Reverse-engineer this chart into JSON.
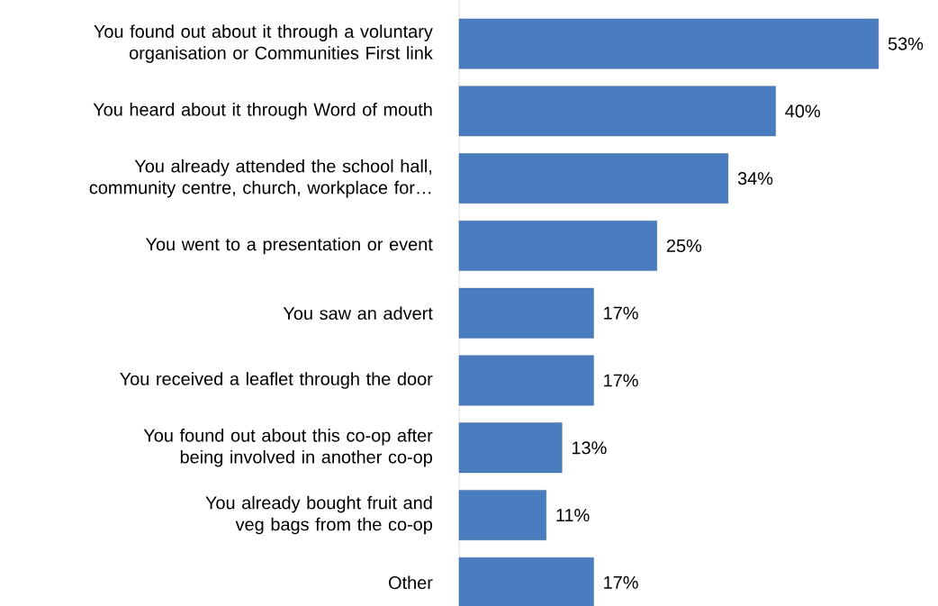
{
  "chart_data": {
    "type": "bar",
    "orientation": "horizontal",
    "color": "#4a7dc0",
    "categories": [
      "You found out about it through a voluntary organisation or Communities First link",
      "You heard about it through Word of mouth",
      "You already attended the school hall, community centre, church, workplace for…",
      "You went to a presentation or event",
      "You saw an advert",
      "You received a leaflet through the door",
      "You found out about this co-op after being involved in another co-op",
      "You already bought fruit and veg bags from the co-op",
      "Other"
    ],
    "values": [
      53,
      40,
      34,
      25,
      17,
      17,
      13,
      11,
      17
    ],
    "value_labels": [
      "53%",
      "40%",
      "34%",
      "25%",
      "17%",
      "17%",
      "13%",
      "11%",
      "17%"
    ]
  }
}
